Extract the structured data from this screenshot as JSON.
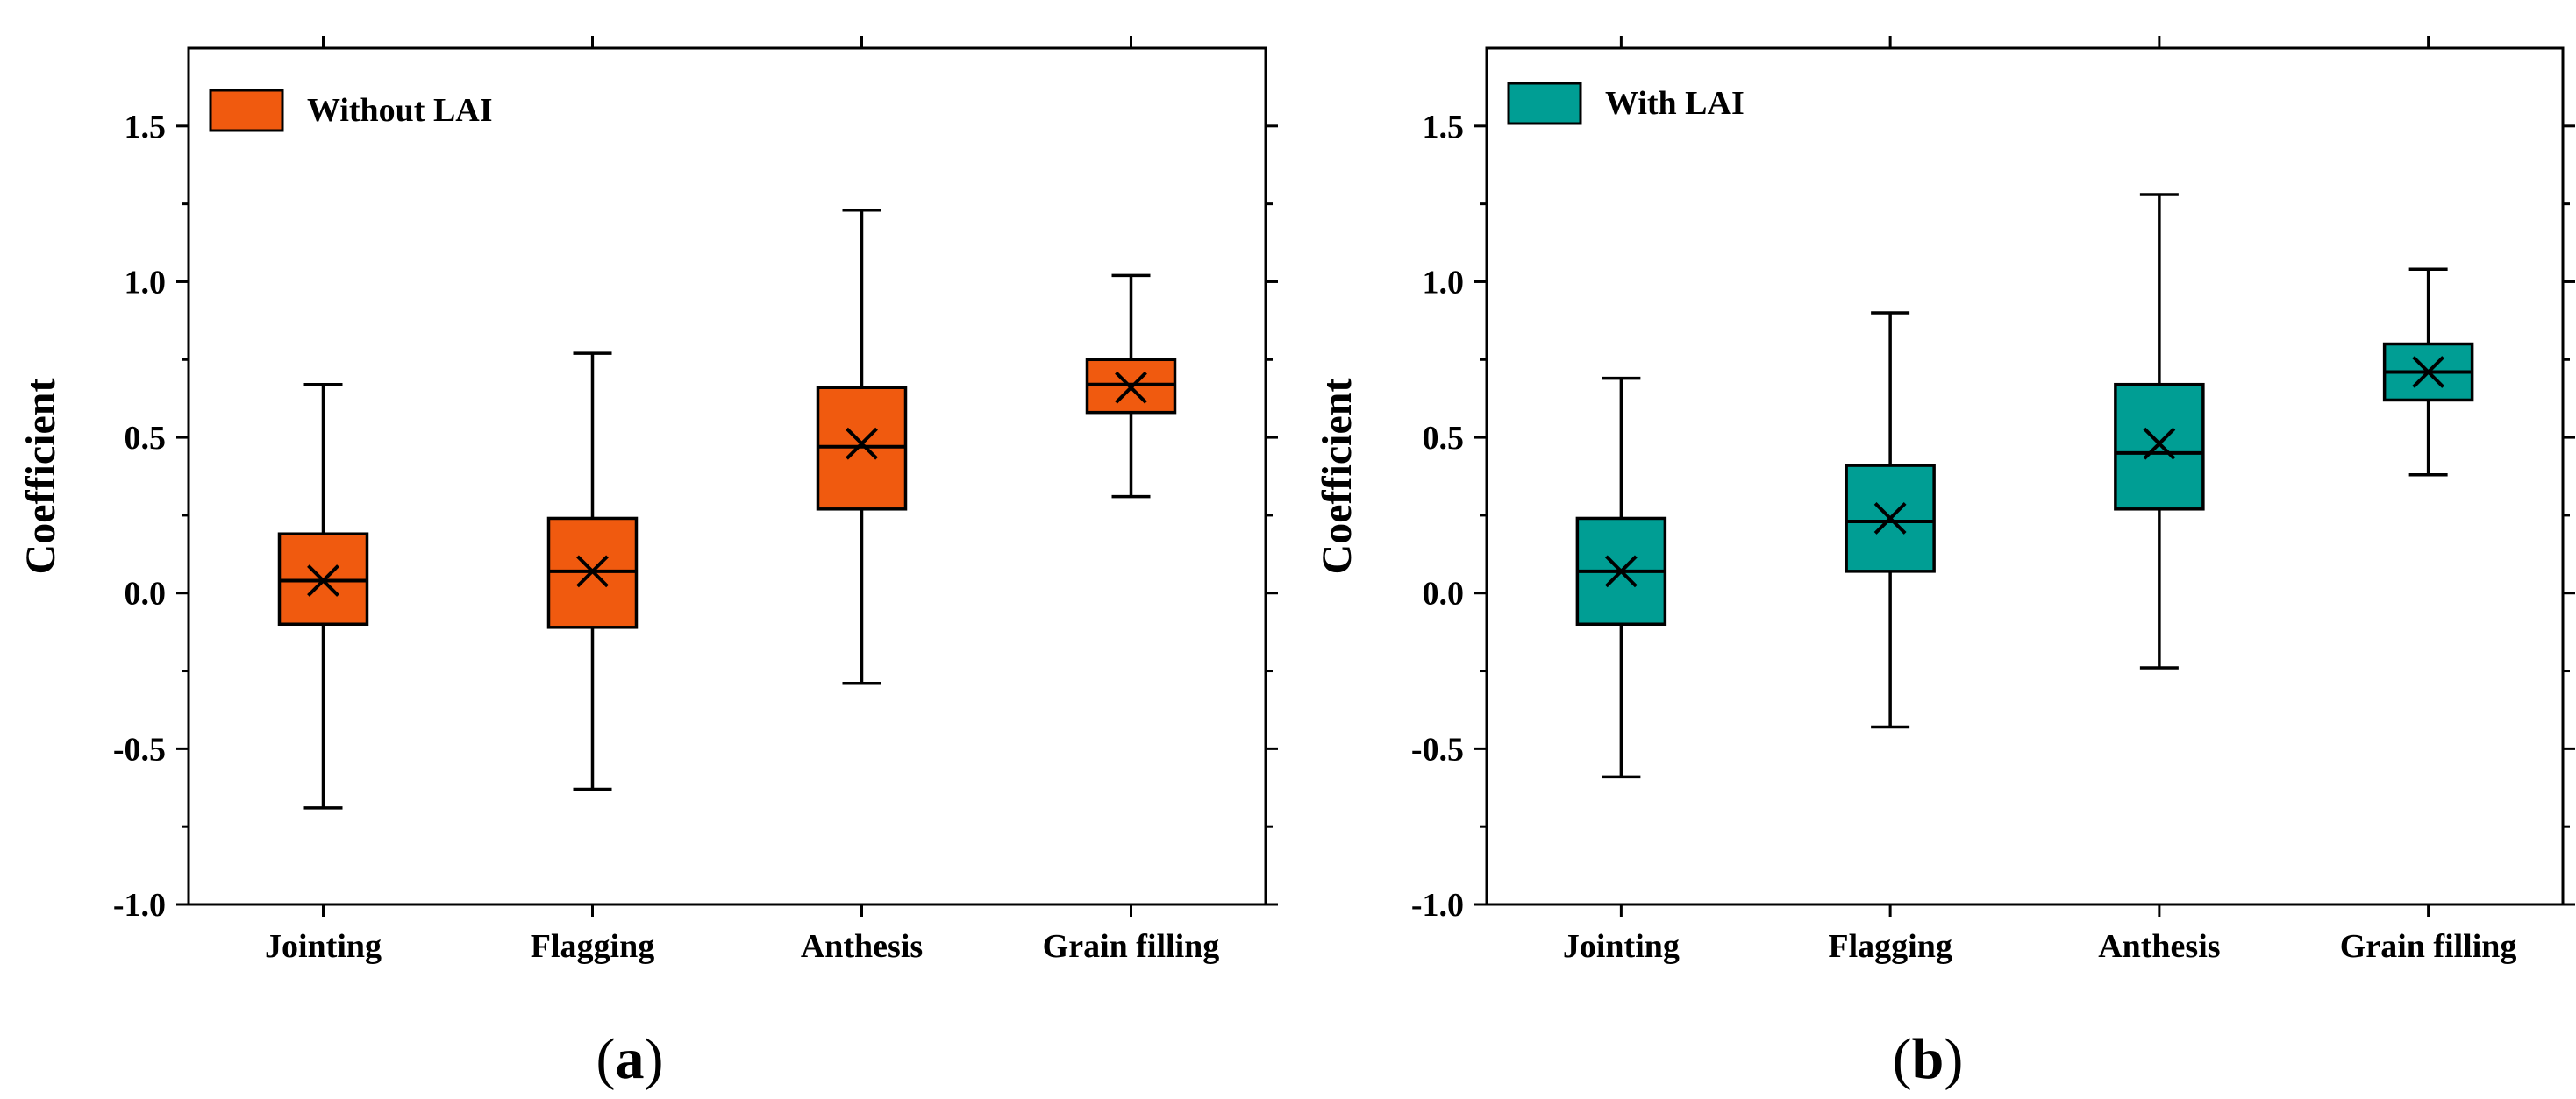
{
  "chart_data": [
    {
      "panel": "a",
      "type": "box",
      "title": "",
      "xlabel": "",
      "ylabel": "Coefficient",
      "ylim": [
        -1.0,
        1.75
      ],
      "yticks": [
        "-1.0",
        "-0.5",
        "0.0",
        "0.5",
        "1.0",
        "1.5"
      ],
      "categories": [
        "Jointing",
        "Flagging",
        "Anthesis",
        "Grain filling"
      ],
      "legend": {
        "label": "Without LAI",
        "position": "top-left"
      },
      "color": "#F05A0F",
      "boxes": [
        {
          "min": -0.69,
          "q1": -0.1,
          "median": 0.04,
          "q3": 0.19,
          "max": 0.67,
          "mean": 0.04
        },
        {
          "min": -0.63,
          "q1": -0.11,
          "median": 0.07,
          "q3": 0.24,
          "max": 0.77,
          "mean": 0.07
        },
        {
          "min": -0.29,
          "q1": 0.27,
          "median": 0.47,
          "q3": 0.66,
          "max": 1.23,
          "mean": 0.48
        },
        {
          "min": 0.31,
          "q1": 0.58,
          "median": 0.67,
          "q3": 0.75,
          "max": 1.02,
          "mean": 0.66
        }
      ],
      "grid": false
    },
    {
      "panel": "b",
      "type": "box",
      "title": "",
      "xlabel": "",
      "ylabel": "Coefficient",
      "ylim": [
        -1.0,
        1.75
      ],
      "yticks": [
        "-1.0",
        "-0.5",
        "0.0",
        "0.5",
        "1.0",
        "1.5"
      ],
      "categories": [
        "Jointing",
        "Flagging",
        "Anthesis",
        "Grain filling"
      ],
      "legend": {
        "label": "With LAI",
        "position": "top-left"
      },
      "color": "#009E94",
      "boxes": [
        {
          "min": -0.59,
          "q1": -0.1,
          "median": 0.07,
          "q3": 0.24,
          "max": 0.69,
          "mean": 0.07
        },
        {
          "min": -0.43,
          "q1": 0.07,
          "median": 0.23,
          "q3": 0.41,
          "max": 0.9,
          "mean": 0.24
        },
        {
          "min": -0.24,
          "q1": 0.27,
          "median": 0.45,
          "q3": 0.67,
          "max": 1.28,
          "mean": 0.48
        },
        {
          "min": 0.38,
          "q1": 0.62,
          "median": 0.71,
          "q3": 0.8,
          "max": 1.04,
          "mean": 0.71
        }
      ],
      "grid": false
    }
  ],
  "panel_labels": [
    {
      "open": "(",
      "letter": "a",
      "close": ")"
    },
    {
      "open": "(",
      "letter": "b",
      "close": ")"
    }
  ]
}
